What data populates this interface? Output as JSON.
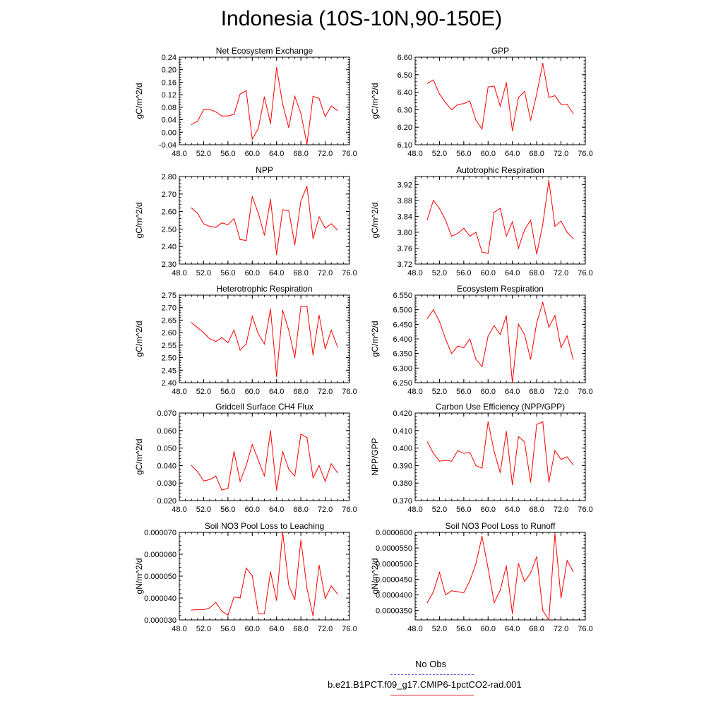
{
  "title": "Indonesia (10S-10N,90-150E)",
  "legend": {
    "items": [
      {
        "label": "No Obs",
        "color": "#5a5ae0",
        "dash": true
      },
      {
        "label": "b.e21.B1PCT.f09_g17.CMIP6-1pctCO2-rad.001",
        "color": "#e02020",
        "dash": false
      }
    ]
  },
  "chart_data": [
    {
      "type": "line",
      "title": "Net Ecosystem Exchange",
      "ylabel": "gC/m^2/d",
      "xlim": [
        48,
        76
      ],
      "xticks": [
        "48.0",
        "52.0",
        "56.0",
        "60.0",
        "64.0",
        "68.0",
        "72.0",
        "76.0"
      ],
      "ylim": [
        -0.04,
        0.24
      ],
      "yticks": [
        "-0.04",
        "0.00",
        "0.04",
        "0.08",
        "0.12",
        "0.16",
        "0.20",
        "0.24"
      ],
      "series": [
        {
          "color": "#ff0000",
          "x": [
            50,
            51,
            52,
            53,
            54,
            55,
            56,
            57,
            58,
            59,
            60,
            61,
            62,
            63,
            64,
            65,
            66,
            67,
            68,
            69,
            70,
            71,
            72,
            73,
            74
          ],
          "y": [
            0.025,
            0.035,
            0.072,
            0.073,
            0.065,
            0.052,
            0.052,
            0.057,
            0.122,
            0.133,
            -0.022,
            0.012,
            0.113,
            0.027,
            0.207,
            0.09,
            0.015,
            0.115,
            0.06,
            -0.038,
            0.115,
            0.108,
            0.05,
            0.084,
            0.07
          ]
        }
      ]
    },
    {
      "type": "line",
      "title": "GPP",
      "ylabel": "gC/m^2/d",
      "xlim": [
        48,
        76
      ],
      "xticks": [
        "48.0",
        "52.0",
        "56.0",
        "60.0",
        "64.0",
        "68.0",
        "72.0",
        "76.0"
      ],
      "ylim": [
        6.1,
        6.6
      ],
      "yticks": [
        "6.10",
        "6.20",
        "6.30",
        "6.40",
        "6.50",
        "6.60"
      ],
      "series": [
        {
          "color": "#ff0000",
          "x": [
            50,
            51,
            52,
            53,
            54,
            55,
            56,
            57,
            58,
            59,
            60,
            61,
            62,
            63,
            64,
            65,
            66,
            67,
            68,
            69,
            70,
            71,
            72,
            73,
            74
          ],
          "y": [
            6.45,
            6.47,
            6.39,
            6.34,
            6.3,
            6.33,
            6.335,
            6.35,
            6.24,
            6.19,
            6.43,
            6.435,
            6.32,
            6.455,
            6.18,
            6.37,
            6.405,
            6.24,
            6.39,
            6.565,
            6.37,
            6.38,
            6.33,
            6.33,
            6.28
          ]
        }
      ]
    },
    {
      "type": "line",
      "title": "NPP",
      "ylabel": "gC/m^2/d",
      "xlim": [
        48,
        76
      ],
      "xticks": [
        "48.0",
        "52.0",
        "56.0",
        "60.0",
        "64.0",
        "68.0",
        "72.0",
        "76.0"
      ],
      "ylim": [
        2.3,
        2.8
      ],
      "yticks": [
        "2.30",
        "2.40",
        "2.50",
        "2.60",
        "2.70",
        "2.80"
      ],
      "series": [
        {
          "color": "#ff0000",
          "x": [
            50,
            51,
            52,
            53,
            54,
            55,
            56,
            57,
            58,
            59,
            60,
            61,
            62,
            63,
            64,
            65,
            66,
            67,
            68,
            69,
            70,
            71,
            72,
            73,
            74
          ],
          "y": [
            2.62,
            2.59,
            2.53,
            2.515,
            2.51,
            2.535,
            2.525,
            2.56,
            2.44,
            2.435,
            2.685,
            2.59,
            2.465,
            2.67,
            2.355,
            2.61,
            2.605,
            2.41,
            2.66,
            2.745,
            2.445,
            2.57,
            2.505,
            2.53,
            2.495
          ]
        }
      ]
    },
    {
      "type": "line",
      "title": "Autotrophic Respiration",
      "ylabel": "gC/m^2/d",
      "xlim": [
        48,
        76
      ],
      "xticks": [
        "48.0",
        "52.0",
        "56.0",
        "60.0",
        "64.0",
        "68.0",
        "72.0",
        "76.0"
      ],
      "ylim": [
        3.72,
        3.94
      ],
      "yticks": [
        "3.72",
        "3.76",
        "3.80",
        "3.84",
        "3.88",
        "3.92"
      ],
      "series": [
        {
          "color": "#ff0000",
          "x": [
            50,
            51,
            52,
            53,
            54,
            55,
            56,
            57,
            58,
            59,
            60,
            61,
            62,
            63,
            64,
            65,
            66,
            67,
            68,
            69,
            70,
            71,
            72,
            73,
            74
          ],
          "y": [
            3.832,
            3.88,
            3.86,
            3.83,
            3.79,
            3.797,
            3.81,
            3.79,
            3.8,
            3.75,
            3.747,
            3.85,
            3.86,
            3.79,
            3.826,
            3.76,
            3.806,
            3.83,
            3.745,
            3.82,
            3.93,
            3.815,
            3.828,
            3.8,
            3.784
          ]
        }
      ]
    },
    {
      "type": "line",
      "title": "Heterotrophic Respiration",
      "ylabel": "gC/m^2/d",
      "xlim": [
        48,
        76
      ],
      "xticks": [
        "48.0",
        "52.0",
        "56.0",
        "60.0",
        "64.0",
        "68.0",
        "72.0",
        "76.0"
      ],
      "ylim": [
        2.4,
        2.75
      ],
      "yticks": [
        "2.40",
        "2.45",
        "2.50",
        "2.55",
        "2.60",
        "2.65",
        "2.70",
        "2.75"
      ],
      "series": [
        {
          "color": "#ff0000",
          "x": [
            50,
            51,
            52,
            53,
            54,
            55,
            56,
            57,
            58,
            59,
            60,
            61,
            62,
            63,
            64,
            65,
            66,
            67,
            68,
            69,
            70,
            71,
            72,
            73,
            74
          ],
          "y": [
            2.64,
            2.62,
            2.6,
            2.575,
            2.565,
            2.58,
            2.56,
            2.61,
            2.53,
            2.555,
            2.665,
            2.595,
            2.555,
            2.695,
            2.425,
            2.69,
            2.61,
            2.5,
            2.705,
            2.705,
            2.51,
            2.67,
            2.535,
            2.61,
            2.545
          ]
        }
      ]
    },
    {
      "type": "line",
      "title": "Ecosystem Respiration",
      "ylabel": "gC/m^2/d",
      "xlim": [
        48,
        76
      ],
      "xticks": [
        "48.0",
        "52.0",
        "56.0",
        "60.0",
        "64.0",
        "68.0",
        "72.0",
        "76.0"
      ],
      "ylim": [
        6.25,
        6.55
      ],
      "yticks": [
        "6.250",
        "6.300",
        "6.350",
        "6.400",
        "6.450",
        "6.500",
        "6.550"
      ],
      "series": [
        {
          "color": "#ff0000",
          "x": [
            50,
            51,
            52,
            53,
            54,
            55,
            56,
            57,
            58,
            59,
            60,
            61,
            62,
            63,
            64,
            65,
            66,
            67,
            68,
            69,
            70,
            71,
            72,
            73,
            74
          ],
          "y": [
            6.47,
            6.5,
            6.46,
            6.4,
            6.35,
            6.375,
            6.37,
            6.4,
            6.33,
            6.305,
            6.41,
            6.445,
            6.415,
            6.48,
            6.25,
            6.45,
            6.415,
            6.33,
            6.455,
            6.525,
            6.44,
            6.48,
            6.37,
            6.41,
            6.33
          ]
        }
      ]
    },
    {
      "type": "line",
      "title": "Gridcell Surface CH4 Flux",
      "ylabel": "gC/m^2/d",
      "xlim": [
        48,
        76
      ],
      "xticks": [
        "48.0",
        "52.0",
        "56.0",
        "60.0",
        "64.0",
        "68.0",
        "72.0",
        "76.0"
      ],
      "ylim": [
        0.02,
        0.07
      ],
      "yticks": [
        "0.020",
        "0.030",
        "0.040",
        "0.050",
        "0.060",
        "0.070"
      ],
      "series": [
        {
          "color": "#ff0000",
          "x": [
            50,
            51,
            52,
            53,
            54,
            55,
            56,
            57,
            58,
            59,
            60,
            61,
            62,
            63,
            64,
            65,
            66,
            67,
            68,
            69,
            70,
            71,
            72,
            73,
            74
          ],
          "y": [
            0.04,
            0.0365,
            0.0312,
            0.032,
            0.034,
            0.026,
            0.027,
            0.048,
            0.031,
            0.04,
            0.052,
            0.043,
            0.034,
            0.06,
            0.026,
            0.048,
            0.038,
            0.034,
            0.058,
            0.056,
            0.033,
            0.04,
            0.031,
            0.041,
            0.036
          ]
        }
      ]
    },
    {
      "type": "line",
      "title": "Carbon Use Efficiency (NPP/GPP)",
      "ylabel": "NPP/GPP",
      "xlim": [
        48,
        76
      ],
      "xticks": [
        "48.0",
        "52.0",
        "56.0",
        "60.0",
        "64.0",
        "68.0",
        "72.0",
        "76.0"
      ],
      "ylim": [
        0.37,
        0.42
      ],
      "yticks": [
        "0.370",
        "0.380",
        "0.390",
        "0.400",
        "0.410",
        "0.420"
      ],
      "series": [
        {
          "color": "#ff0000",
          "x": [
            50,
            51,
            52,
            53,
            54,
            55,
            56,
            57,
            58,
            59,
            60,
            61,
            62,
            63,
            64,
            65,
            66,
            67,
            68,
            69,
            70,
            71,
            72,
            73,
            74
          ],
          "y": [
            0.4035,
            0.397,
            0.3925,
            0.393,
            0.3925,
            0.3985,
            0.397,
            0.3975,
            0.39,
            0.3885,
            0.415,
            0.398,
            0.386,
            0.4095,
            0.379,
            0.4065,
            0.4035,
            0.3805,
            0.4135,
            0.415,
            0.3805,
            0.3985,
            0.3935,
            0.395,
            0.3905
          ]
        }
      ]
    },
    {
      "type": "line",
      "title": "Soil NO3 Pool Loss to Leaching",
      "ylabel": "gN/m^2/d",
      "xlim": [
        48,
        76
      ],
      "xticks": [
        "48.0",
        "52.0",
        "56.0",
        "60.0",
        "64.0",
        "68.0",
        "72.0",
        "76.0"
      ],
      "ylim": [
        3e-05,
        7e-05
      ],
      "yticks": [
        "0.000030",
        "0.000040",
        "0.000050",
        "0.000060",
        "0.000070"
      ],
      "series": [
        {
          "color": "#ff0000",
          "x": [
            50,
            51,
            52,
            53,
            54,
            55,
            56,
            57,
            58,
            59,
            60,
            61,
            62,
            63,
            64,
            65,
            66,
            67,
            68,
            69,
            70,
            71,
            72,
            73,
            74
          ],
          "y": [
            3.45e-05,
            3.47e-05,
            3.47e-05,
            3.55e-05,
            3.8e-05,
            3.4e-05,
            3.22e-05,
            4.05e-05,
            4e-05,
            5.37e-05,
            5.02e-05,
            3.3e-05,
            3.28e-05,
            5.2e-05,
            3.9e-05,
            7.02e-05,
            4.58e-05,
            3.92e-05,
            6.65e-05,
            4.45e-05,
            3.18e-05,
            5.5e-05,
            3.98e-05,
            4.55e-05,
            4.2e-05
          ]
        }
      ]
    },
    {
      "type": "line",
      "title": "Soil NO3 Pool Loss to Runoff",
      "ylabel": "gN/m^2/d",
      "xlim": [
        48,
        76
      ],
      "xticks": [
        "48.0",
        "52.0",
        "56.0",
        "60.0",
        "64.0",
        "68.0",
        "72.0",
        "76.0"
      ],
      "ylim": [
        3.2e-05,
        6e-05
      ],
      "yticks": [
        "0.0000350",
        "0.0000400",
        "0.0000450",
        "0.0000500",
        "0.0000550",
        "0.0000600"
      ],
      "series": [
        {
          "color": "#ff0000",
          "x": [
            50,
            51,
            52,
            53,
            54,
            55,
            56,
            57,
            58,
            59,
            60,
            61,
            62,
            63,
            64,
            65,
            66,
            67,
            68,
            69,
            70,
            71,
            72,
            73,
            74
          ],
          "y": [
            3.75e-05,
            4.1e-05,
            4.72e-05,
            4e-05,
            4.13e-05,
            4.1e-05,
            4.07e-05,
            4.45e-05,
            5e-05,
            5.87e-05,
            4.85e-05,
            3.75e-05,
            4.15e-05,
            4.93e-05,
            3.4e-05,
            5e-05,
            4.43e-05,
            4.7e-05,
            5.22e-05,
            3.5e-05,
            3.2e-05,
            5.95e-05,
            3.9e-05,
            5.1e-05,
            4.75e-05
          ]
        }
      ]
    }
  ]
}
